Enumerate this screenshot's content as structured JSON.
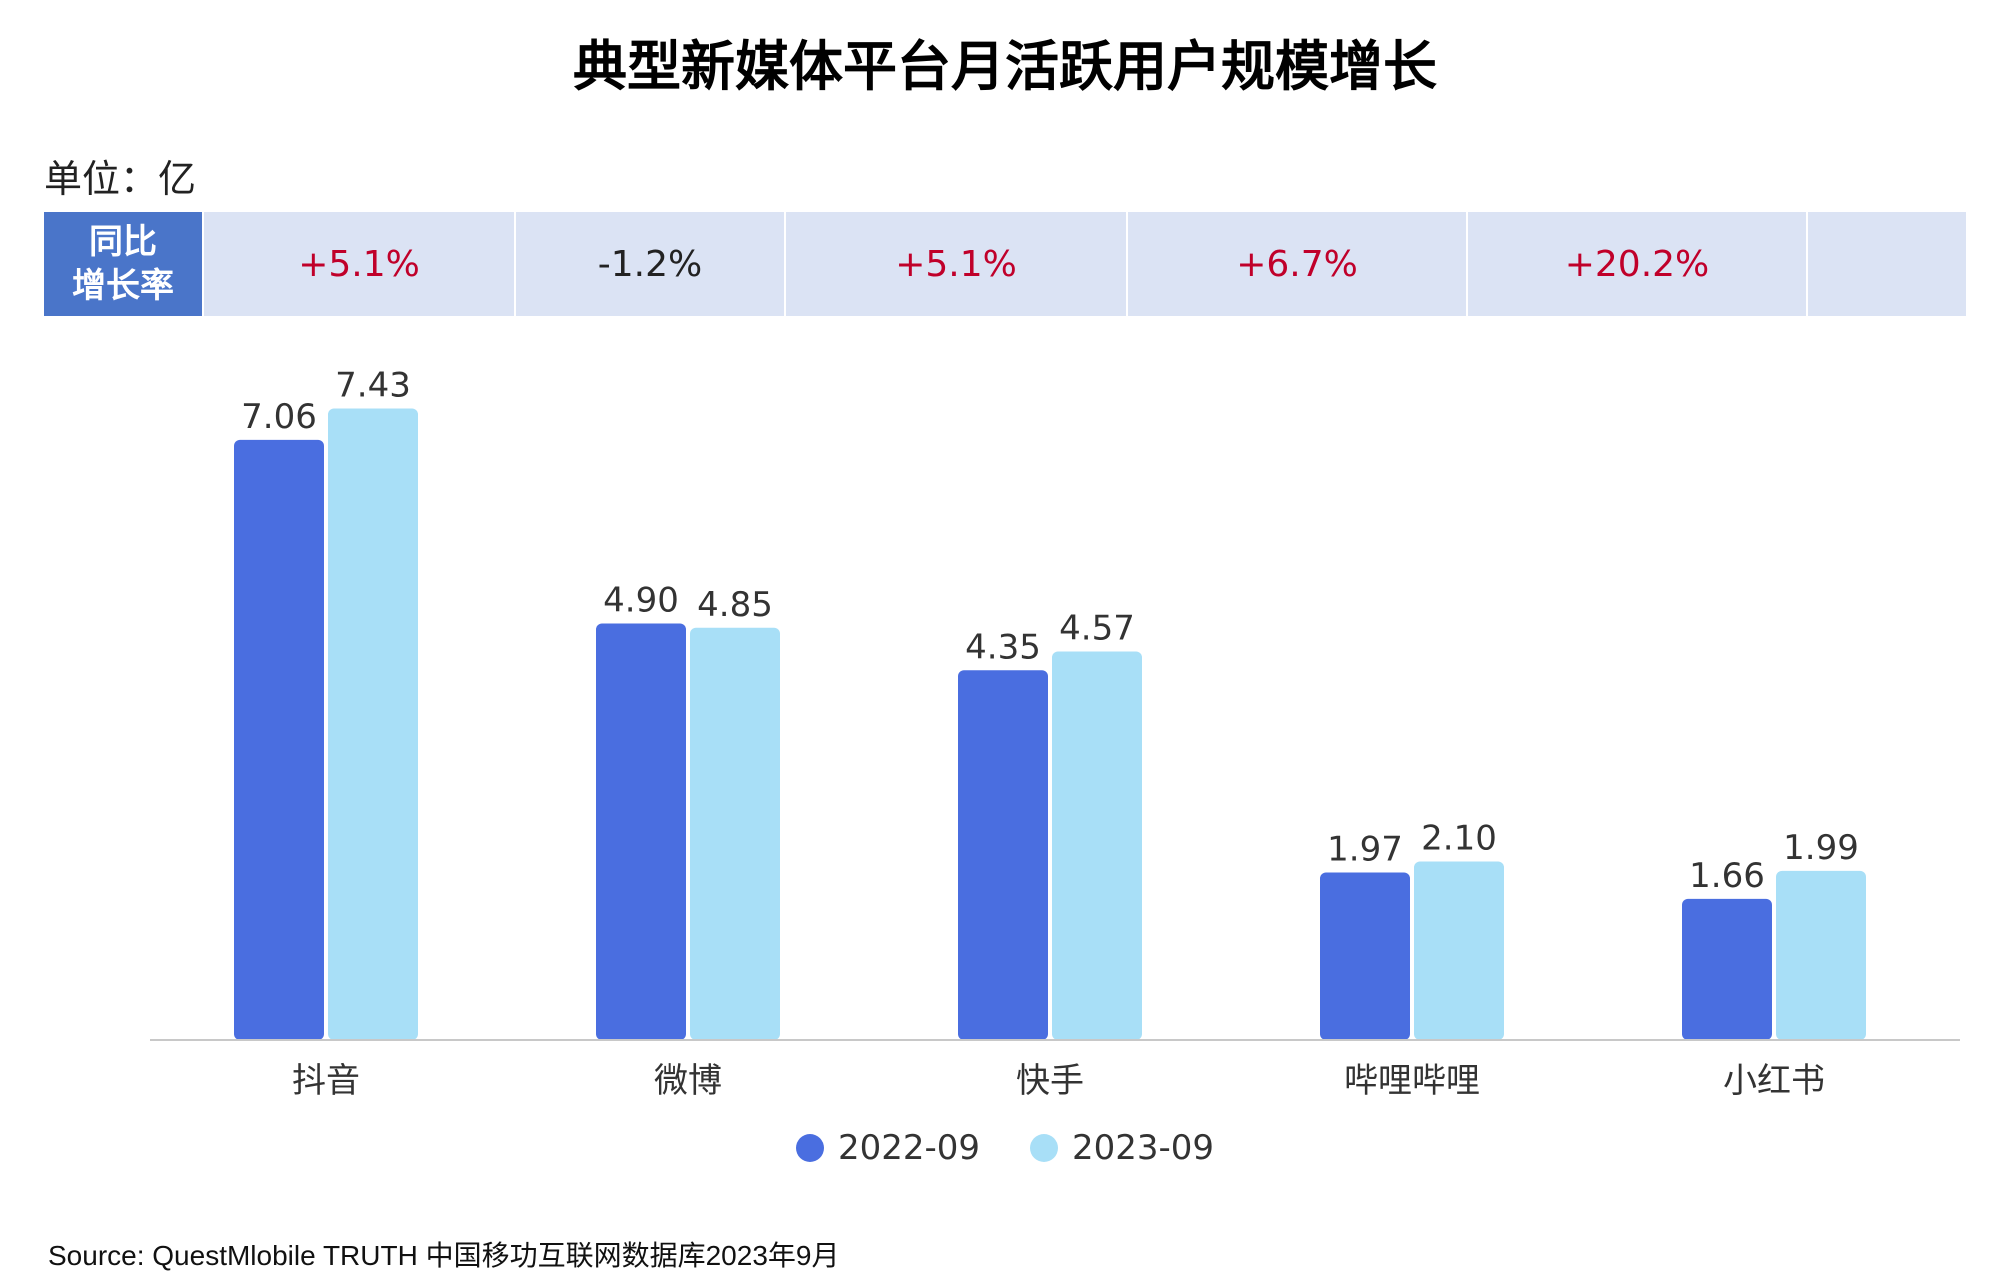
{
  "title": "典型新媒体平台月活跃用户规模增长",
  "unit": "单位：亿",
  "yoy": {
    "header_line1": "同比",
    "header_line2": "增长率",
    "values": [
      "+5.1%",
      "-1.2%",
      "+5.1%",
      "+6.7%",
      "+20.2%"
    ],
    "positive_color": "#c0002a",
    "negative_color": "#222222"
  },
  "chart_data": {
    "type": "bar",
    "title": "典型新媒体平台月活跃用户规模增长",
    "xlabel": "",
    "ylabel": "单位：亿",
    "categories": [
      "抖音",
      "微博",
      "快手",
      "哔哩哔哩",
      "小红书"
    ],
    "series": [
      {
        "name": "2022-09",
        "color": "#4a6ee0",
        "values": [
          7.06,
          4.9,
          4.35,
          1.97,
          1.66
        ]
      },
      {
        "name": "2023-09",
        "color": "#a8dff7",
        "values": [
          7.43,
          4.85,
          4.57,
          2.1,
          1.99
        ]
      }
    ],
    "ylim": [
      0,
      8.0
    ],
    "grid": false,
    "legend_position": "bottom"
  },
  "source": "Source: QuestMlobile TRUTH 中国移功互联网数据库2023年9月"
}
